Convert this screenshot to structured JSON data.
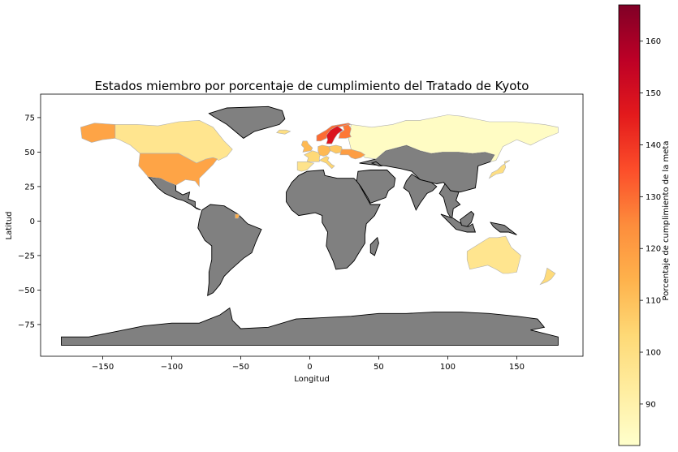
{
  "chart_data": {
    "type": "choropleth",
    "title": "Estados miembro por porcentaje de cumplimiento del Tratado de Kyoto",
    "xlabel": "Longitud",
    "ylabel": "Latitud",
    "xlim": [
      -195,
      198
    ],
    "ylim": [
      -98,
      92
    ],
    "xticks": [
      -150,
      -100,
      -50,
      0,
      50,
      100,
      150
    ],
    "yticks": [
      75,
      50,
      25,
      0,
      -25,
      -50,
      -75
    ],
    "xtick_labels": [
      "−150",
      "−100",
      "−50",
      "0",
      "50",
      "100",
      "150"
    ],
    "ytick_labels": [
      "75",
      "50",
      "25",
      "0",
      "−25",
      "−50",
      "−75"
    ],
    "colorbar": {
      "label": "Porcentaje de cumplimiento de la meta",
      "range": [
        82,
        167
      ],
      "ticks": [
        90,
        100,
        110,
        120,
        130,
        140,
        150,
        160
      ],
      "colormap": [
        "#ffffcc",
        "#ffeda0",
        "#fed976",
        "#feb24c",
        "#fd8d3c",
        "#fc4e2a",
        "#e31a1c",
        "#bd0026",
        "#800026"
      ]
    },
    "missing_color": "#808080",
    "regions": [
      {
        "name": "Rusia",
        "value": 84
      },
      {
        "name": "Canadá",
        "value": 97
      },
      {
        "name": "Alaska (EE.UU.)",
        "value": 118
      },
      {
        "name": "Estados Unidos",
        "value": 118
      },
      {
        "name": "Australia",
        "value": 97
      },
      {
        "name": "Nueva Zelanda",
        "value": 102
      },
      {
        "name": "Japón",
        "value": 100
      },
      {
        "name": "Noruega",
        "value": 130
      },
      {
        "name": "Suecia",
        "value": 148
      },
      {
        "name": "Finlandia",
        "value": 128
      },
      {
        "name": "Islandia",
        "value": 100
      },
      {
        "name": "Reino Unido",
        "value": 112
      },
      {
        "name": "Francia",
        "value": 103
      },
      {
        "name": "España",
        "value": 98
      },
      {
        "name": "Alemania",
        "value": 112
      },
      {
        "name": "Polonia",
        "value": 108
      },
      {
        "name": "Italia",
        "value": 104
      },
      {
        "name": "Ucrania",
        "value": 120
      },
      {
        "name": "Guayana Francesa",
        "value": 115
      }
    ]
  }
}
